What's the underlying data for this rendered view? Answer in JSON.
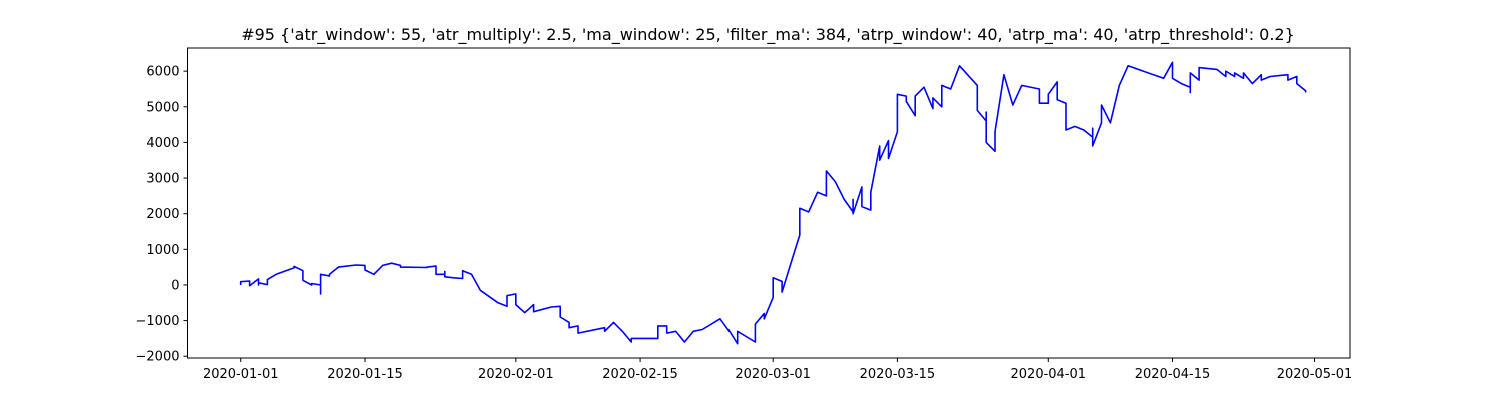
{
  "chart_data": {
    "type": "line",
    "title": "#95 {'atr_window': 55, 'atr_multiply': 2.5, 'ma_window': 25, 'filter_ma': 384, 'atrp_window': 40, 'atrp_ma': 40, 'atrp_threshold': 0.2}",
    "xlabel": "",
    "ylabel": "",
    "xlim": [
      "2019-12-26",
      "2020-05-05"
    ],
    "ylim": [
      -2050,
      6650
    ],
    "grid": false,
    "legend": "none",
    "colors": {
      "line": "#0000ff",
      "axes": "#000000",
      "background": "#ffffff"
    },
    "x_ticks": [
      {
        "date": "2020-01-01",
        "label": "2020-01-01"
      },
      {
        "date": "2020-01-15",
        "label": "2020-01-15"
      },
      {
        "date": "2020-02-01",
        "label": "2020-02-01"
      },
      {
        "date": "2020-02-15",
        "label": "2020-02-15"
      },
      {
        "date": "2020-03-01",
        "label": "2020-03-01"
      },
      {
        "date": "2020-03-15",
        "label": "2020-03-15"
      },
      {
        "date": "2020-04-01",
        "label": "2020-04-01"
      },
      {
        "date": "2020-04-15",
        "label": "2020-04-15"
      },
      {
        "date": "2020-05-01",
        "label": "2020-05-01"
      }
    ],
    "y_ticks": [
      {
        "value": -2000,
        "label": "−2000"
      },
      {
        "value": -1000,
        "label": "−1000"
      },
      {
        "value": 0,
        "label": "0"
      },
      {
        "value": 1000,
        "label": "1000"
      },
      {
        "value": 2000,
        "label": "2000"
      },
      {
        "value": 3000,
        "label": "3000"
      },
      {
        "value": 4000,
        "label": "4000"
      },
      {
        "value": 5000,
        "label": "5000"
      },
      {
        "value": 6000,
        "label": "6000"
      }
    ],
    "series": [
      {
        "color": "#0000ff",
        "points": [
          [
            "2020-01-01",
            0
          ],
          [
            "2020-01-01",
            90
          ],
          [
            "2020-01-02",
            110
          ],
          [
            "2020-01-02",
            -20
          ],
          [
            "2020-01-03",
            170
          ],
          [
            "2020-01-03",
            0
          ],
          [
            "2020-01-03",
            60
          ],
          [
            "2020-01-04",
            10
          ],
          [
            "2020-01-04",
            150
          ],
          [
            "2020-01-05",
            300
          ],
          [
            "2020-01-07",
            480
          ],
          [
            "2020-01-07",
            520
          ],
          [
            "2020-01-08",
            400
          ],
          [
            "2020-01-08",
            130
          ],
          [
            "2020-01-09",
            0
          ],
          [
            "2020-01-09",
            40
          ],
          [
            "2020-01-10",
            0
          ],
          [
            "2020-01-10",
            -250
          ],
          [
            "2020-01-10",
            300
          ],
          [
            "2020-01-11",
            250
          ],
          [
            "2020-01-11",
            300
          ],
          [
            "2020-01-12",
            500
          ],
          [
            "2020-01-14",
            560
          ],
          [
            "2020-01-15",
            550
          ],
          [
            "2020-01-15",
            420
          ],
          [
            "2020-01-16",
            300
          ],
          [
            "2020-01-17",
            550
          ],
          [
            "2020-01-18",
            610
          ],
          [
            "2020-01-19",
            550
          ],
          [
            "2020-01-19",
            500
          ],
          [
            "2020-01-22",
            490
          ],
          [
            "2020-01-22",
            500
          ],
          [
            "2020-01-23",
            530
          ],
          [
            "2020-01-23",
            300
          ],
          [
            "2020-01-24",
            300
          ],
          [
            "2020-01-24",
            380
          ],
          [
            "2020-01-24",
            230
          ],
          [
            "2020-01-25",
            200
          ],
          [
            "2020-01-26",
            180
          ],
          [
            "2020-01-26",
            300
          ],
          [
            "2020-01-26",
            400
          ],
          [
            "2020-01-27",
            300
          ],
          [
            "2020-01-28",
            -150
          ],
          [
            "2020-01-30",
            -500
          ],
          [
            "2020-01-31",
            -600
          ],
          [
            "2020-01-31",
            -300
          ],
          [
            "2020-02-01",
            -250
          ],
          [
            "2020-02-01",
            -550
          ],
          [
            "2020-02-02",
            -780
          ],
          [
            "2020-02-03",
            -550
          ],
          [
            "2020-02-03",
            -750
          ],
          [
            "2020-02-05",
            -620
          ],
          [
            "2020-02-06",
            -600
          ],
          [
            "2020-02-06",
            -900
          ],
          [
            "2020-02-07",
            -1050
          ],
          [
            "2020-02-07",
            -1200
          ],
          [
            "2020-02-08",
            -1150
          ],
          [
            "2020-02-08",
            -1350
          ],
          [
            "2020-02-11",
            -1200
          ],
          [
            "2020-02-11",
            -1300
          ],
          [
            "2020-02-12",
            -1050
          ],
          [
            "2020-02-13",
            -1300
          ],
          [
            "2020-02-14",
            -1600
          ],
          [
            "2020-02-14",
            -1500
          ],
          [
            "2020-02-17",
            -1500
          ],
          [
            "2020-02-17",
            -1150
          ],
          [
            "2020-02-18",
            -1150
          ],
          [
            "2020-02-18",
            -1350
          ],
          [
            "2020-02-19",
            -1300
          ],
          [
            "2020-02-20",
            -1600
          ],
          [
            "2020-02-21",
            -1300
          ],
          [
            "2020-02-22",
            -1250
          ],
          [
            "2020-02-24",
            -950
          ],
          [
            "2020-02-25",
            -1300
          ],
          [
            "2020-02-25",
            -1250
          ],
          [
            "2020-02-26",
            -1650
          ],
          [
            "2020-02-26",
            -1300
          ],
          [
            "2020-02-28",
            -1600
          ],
          [
            "2020-02-28",
            -1100
          ],
          [
            "2020-02-29",
            -800
          ],
          [
            "2020-02-29",
            -950
          ],
          [
            "2020-03-01",
            -350
          ],
          [
            "2020-03-01",
            200
          ],
          [
            "2020-03-02",
            100
          ],
          [
            "2020-03-02",
            -200
          ],
          [
            "2020-03-03",
            600
          ],
          [
            "2020-03-04",
            1400
          ],
          [
            "2020-03-04",
            2150
          ],
          [
            "2020-03-05",
            2050
          ],
          [
            "2020-03-06",
            2600
          ],
          [
            "2020-03-07",
            2500
          ],
          [
            "2020-03-07",
            3200
          ],
          [
            "2020-03-08",
            2900
          ],
          [
            "2020-03-09",
            2400
          ],
          [
            "2020-03-10",
            2050
          ],
          [
            "2020-03-10",
            2400
          ],
          [
            "2020-03-10",
            2000
          ],
          [
            "2020-03-11",
            2750
          ],
          [
            "2020-03-11",
            2200
          ],
          [
            "2020-03-12",
            2100
          ],
          [
            "2020-03-12",
            2600
          ],
          [
            "2020-03-13",
            3900
          ],
          [
            "2020-03-13",
            3500
          ],
          [
            "2020-03-14",
            4050
          ],
          [
            "2020-03-14",
            3550
          ],
          [
            "2020-03-15",
            4300
          ],
          [
            "2020-03-15",
            5350
          ],
          [
            "2020-03-16",
            5300
          ],
          [
            "2020-03-16",
            5150
          ],
          [
            "2020-03-17",
            4750
          ],
          [
            "2020-03-17",
            5300
          ],
          [
            "2020-03-18",
            5550
          ],
          [
            "2020-03-19",
            4950
          ],
          [
            "2020-03-19",
            5250
          ],
          [
            "2020-03-20",
            5000
          ],
          [
            "2020-03-20",
            5600
          ],
          [
            "2020-03-21",
            5500
          ],
          [
            "2020-03-22",
            6150
          ],
          [
            "2020-03-24",
            5600
          ],
          [
            "2020-03-24",
            4900
          ],
          [
            "2020-03-25",
            4600
          ],
          [
            "2020-03-25",
            4850
          ],
          [
            "2020-03-25",
            4000
          ],
          [
            "2020-03-26",
            3750
          ],
          [
            "2020-03-26",
            4300
          ],
          [
            "2020-03-27",
            5900
          ],
          [
            "2020-03-28",
            5050
          ],
          [
            "2020-03-29",
            5600
          ],
          [
            "2020-03-31",
            5500
          ],
          [
            "2020-03-31",
            5100
          ],
          [
            "2020-04-01",
            5100
          ],
          [
            "2020-04-01",
            5350
          ],
          [
            "2020-04-02",
            5700
          ],
          [
            "2020-04-02",
            5200
          ],
          [
            "2020-04-03",
            5100
          ],
          [
            "2020-04-03",
            4350
          ],
          [
            "2020-04-04",
            4450
          ],
          [
            "2020-04-05",
            4350
          ],
          [
            "2020-04-06",
            4150
          ],
          [
            "2020-04-06",
            4400
          ],
          [
            "2020-04-06",
            3900
          ],
          [
            "2020-04-07",
            4550
          ],
          [
            "2020-04-07",
            5050
          ],
          [
            "2020-04-08",
            4550
          ],
          [
            "2020-04-09",
            5600
          ],
          [
            "2020-04-10",
            6150
          ],
          [
            "2020-04-14",
            5800
          ],
          [
            "2020-04-15",
            6250
          ],
          [
            "2020-04-15",
            5800
          ],
          [
            "2020-04-16",
            5650
          ],
          [
            "2020-04-17",
            5550
          ],
          [
            "2020-04-17",
            5400
          ],
          [
            "2020-04-17",
            5950
          ],
          [
            "2020-04-18",
            5750
          ],
          [
            "2020-04-18",
            6100
          ],
          [
            "2020-04-20",
            6050
          ],
          [
            "2020-04-21",
            5850
          ],
          [
            "2020-04-21",
            6000
          ],
          [
            "2020-04-22",
            5850
          ],
          [
            "2020-04-22",
            5950
          ],
          [
            "2020-04-23",
            5800
          ],
          [
            "2020-04-23",
            5950
          ],
          [
            "2020-04-24",
            5650
          ],
          [
            "2020-04-25",
            5900
          ],
          [
            "2020-04-25",
            5750
          ],
          [
            "2020-04-26",
            5850
          ],
          [
            "2020-04-28",
            5900
          ],
          [
            "2020-04-28",
            5750
          ],
          [
            "2020-04-29",
            5850
          ],
          [
            "2020-04-29",
            5650
          ],
          [
            "2020-04-30",
            5450
          ],
          [
            "2020-04-30",
            5400
          ]
        ]
      }
    ]
  }
}
